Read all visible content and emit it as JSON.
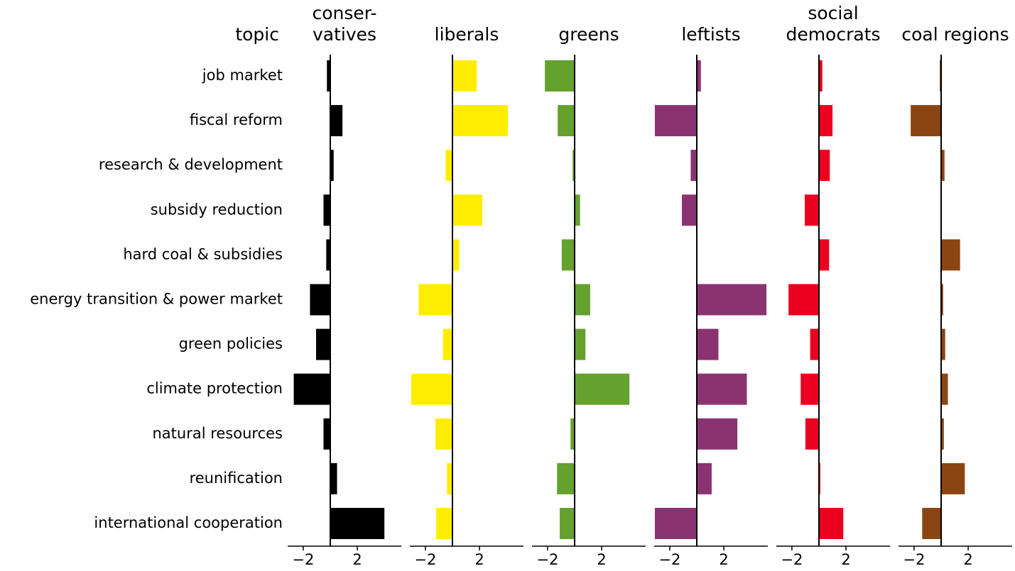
{
  "chart_data": {
    "type": "bar",
    "orientation": "horizontal",
    "category_title": "topic",
    "categories": [
      "job market",
      "fiscal reform",
      "research & development",
      "subsidy reduction",
      "hard coal & subsidies",
      "energy transition & power market",
      "green policies",
      "climate protection",
      "natural resources",
      "reunification",
      "international cooperation"
    ],
    "series": [
      {
        "name": [
          "conser-",
          "vatives"
        ],
        "color": "#000000",
        "values": [
          -0.25,
          0.9,
          0.25,
          -0.5,
          -0.3,
          -1.5,
          -1.05,
          -2.7,
          -0.5,
          0.5,
          4.0
        ]
      },
      {
        "name": [
          "liberals"
        ],
        "color": "#ffed00",
        "values": [
          1.8,
          4.1,
          -0.5,
          2.2,
          0.5,
          -2.5,
          -0.7,
          -3.05,
          -1.25,
          -0.4,
          -1.2
        ]
      },
      {
        "name": [
          "greens"
        ],
        "color": "#64a12d",
        "values": [
          -2.2,
          -1.25,
          -0.15,
          0.4,
          -0.95,
          1.15,
          0.8,
          4.05,
          -0.3,
          -1.3,
          -1.1
        ]
      },
      {
        "name": [
          "leftists"
        ],
        "color": "#8b3370",
        "values": [
          0.3,
          -3.1,
          -0.45,
          -1.1,
          0,
          5.15,
          1.6,
          3.7,
          3.0,
          1.1,
          -3.1
        ]
      },
      {
        "name": [
          "social",
          "democrats"
        ],
        "color": "#eb001f",
        "values": [
          0.25,
          1.0,
          0.8,
          -1.05,
          0.75,
          -2.25,
          -0.65,
          -1.35,
          -1.0,
          0.1,
          1.8
        ]
      },
      {
        "name": [
          "coal regions"
        ],
        "color": "#8b4513",
        "values": [
          -0.1,
          -2.25,
          0.25,
          0.05,
          1.4,
          0.15,
          0.3,
          0.5,
          0.2,
          1.75,
          -1.4
        ]
      }
    ],
    "xlim": [
      -3.15,
      5.25
    ],
    "xticks": [
      {
        "value": -2,
        "label": "−2"
      },
      2
    ]
  }
}
